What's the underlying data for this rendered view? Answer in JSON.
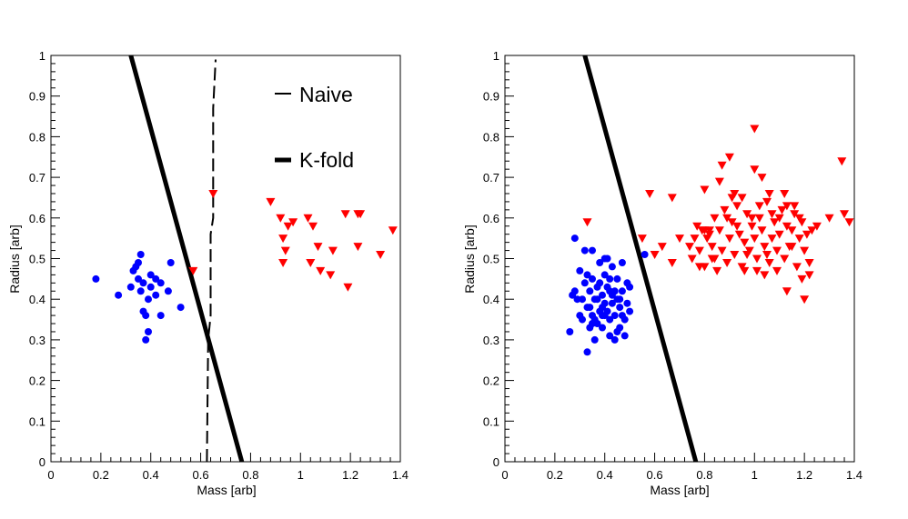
{
  "colors": {
    "class_a_marker": "#0000ff",
    "class_b_marker": "#ff0000",
    "boundary": "#000000",
    "frame": "#000000",
    "background": "#ffffff"
  },
  "chart_data": [
    {
      "type": "scatter",
      "title": "",
      "xlabel": "Mass [arb]",
      "ylabel": "Radius [arb]",
      "xlim": [
        0,
        1.4
      ],
      "ylim": [
        0,
        1
      ],
      "xticks": [
        "0",
        "0.2",
        "0.4",
        "0.6",
        "0.8",
        "1",
        "1.2",
        "1.4"
      ],
      "yticks": [
        "0",
        "0.1",
        "0.2",
        "0.3",
        "0.4",
        "0.5",
        "0.6",
        "0.7",
        "0.8",
        "0.9",
        "1"
      ],
      "grid": false,
      "legend": {
        "placement": "top-right",
        "entries": [
          {
            "label": "Naive",
            "line": "thin"
          },
          {
            "label": "K-fold",
            "line": "thick"
          }
        ]
      },
      "series": [
        {
          "marker": "circle",
          "color": "#0000ff",
          "points": [
            [
              0.18,
              0.45
            ],
            [
              0.27,
              0.41
            ],
            [
              0.32,
              0.43
            ],
            [
              0.33,
              0.47
            ],
            [
              0.34,
              0.48
            ],
            [
              0.35,
              0.49
            ],
            [
              0.36,
              0.51
            ],
            [
              0.35,
              0.45
            ],
            [
              0.37,
              0.44
            ],
            [
              0.36,
              0.42
            ],
            [
              0.37,
              0.37
            ],
            [
              0.38,
              0.36
            ],
            [
              0.39,
              0.4
            ],
            [
              0.38,
              0.3
            ],
            [
              0.39,
              0.32
            ],
            [
              0.4,
              0.46
            ],
            [
              0.4,
              0.43
            ],
            [
              0.42,
              0.41
            ],
            [
              0.42,
              0.45
            ],
            [
              0.44,
              0.44
            ],
            [
              0.44,
              0.36
            ],
            [
              0.47,
              0.42
            ],
            [
              0.48,
              0.49
            ],
            [
              0.52,
              0.38
            ]
          ]
        },
        {
          "marker": "triangle-down",
          "color": "#ff0000",
          "points": [
            [
              0.57,
              0.47
            ],
            [
              0.65,
              0.66
            ],
            [
              0.88,
              0.64
            ],
            [
              0.92,
              0.6
            ],
            [
              0.93,
              0.55
            ],
            [
              0.95,
              0.58
            ],
            [
              0.97,
              0.59
            ],
            [
              0.94,
              0.52
            ],
            [
              0.93,
              0.49
            ],
            [
              1.03,
              0.6
            ],
            [
              1.05,
              0.58
            ],
            [
              1.07,
              0.53
            ],
            [
              1.04,
              0.49
            ],
            [
              1.08,
              0.47
            ],
            [
              1.13,
              0.52
            ],
            [
              1.12,
              0.46
            ],
            [
              1.18,
              0.61
            ],
            [
              1.19,
              0.43
            ],
            [
              1.23,
              0.61
            ],
            [
              1.24,
              0.61
            ],
            [
              1.23,
              0.53
            ],
            [
              1.32,
              0.51
            ],
            [
              1.37,
              0.57
            ]
          ]
        }
      ],
      "boundaries": [
        {
          "label": "Naive",
          "style": "dashed",
          "points": [
            [
              0.625,
              0
            ],
            [
              0.63,
              0.3
            ],
            [
              0.64,
              0.36
            ],
            [
              0.64,
              0.56
            ],
            [
              0.65,
              0.6
            ],
            [
              0.65,
              0.87
            ],
            [
              0.66,
              0.99
            ]
          ]
        },
        {
          "label": "K-fold",
          "style": "solid-thick",
          "points": [
            [
              0.765,
              0
            ],
            [
              0.32,
              1
            ]
          ]
        }
      ]
    },
    {
      "type": "scatter",
      "title": "",
      "xlabel": "Mass [arb]",
      "ylabel": "Radius [arb]",
      "xlim": [
        0,
        1.4
      ],
      "ylim": [
        0,
        1
      ],
      "xticks": [
        "0",
        "0.2",
        "0.4",
        "0.6",
        "0.8",
        "1",
        "1.2",
        "1.4"
      ],
      "yticks": [
        "0",
        "0.1",
        "0.2",
        "0.3",
        "0.4",
        "0.5",
        "0.6",
        "0.7",
        "0.8",
        "0.9",
        "1"
      ],
      "grid": false,
      "series": [
        {
          "marker": "circle",
          "color": "#0000ff",
          "points": [
            [
              0.26,
              0.32
            ],
            [
              0.28,
              0.55
            ],
            [
              0.27,
              0.41
            ],
            [
              0.28,
              0.42
            ],
            [
              0.29,
              0.4
            ],
            [
              0.3,
              0.36
            ],
            [
              0.3,
              0.47
            ],
            [
              0.31,
              0.35
            ],
            [
              0.32,
              0.52
            ],
            [
              0.33,
              0.27
            ],
            [
              0.33,
              0.38
            ],
            [
              0.33,
              0.46
            ],
            [
              0.34,
              0.42
            ],
            [
              0.34,
              0.33
            ],
            [
              0.35,
              0.36
            ],
            [
              0.35,
              0.52
            ],
            [
              0.35,
              0.45
            ],
            [
              0.36,
              0.4
            ],
            [
              0.36,
              0.3
            ],
            [
              0.37,
              0.34
            ],
            [
              0.37,
              0.43
            ],
            [
              0.38,
              0.37
            ],
            [
              0.38,
              0.49
            ],
            [
              0.39,
              0.41
            ],
            [
              0.39,
              0.33
            ],
            [
              0.4,
              0.46
            ],
            [
              0.4,
              0.36
            ],
            [
              0.4,
              0.39
            ],
            [
              0.41,
              0.43
            ],
            [
              0.41,
              0.5
            ],
            [
              0.42,
              0.35
            ],
            [
              0.42,
              0.31
            ],
            [
              0.43,
              0.48
            ],
            [
              0.43,
              0.41
            ],
            [
              0.44,
              0.36
            ],
            [
              0.44,
              0.3
            ],
            [
              0.45,
              0.45
            ],
            [
              0.45,
              0.4
            ],
            [
              0.46,
              0.33
            ],
            [
              0.46,
              0.38
            ],
            [
              0.47,
              0.42
            ],
            [
              0.47,
              0.49
            ],
            [
              0.48,
              0.31
            ],
            [
              0.48,
              0.35
            ],
            [
              0.49,
              0.39
            ],
            [
              0.49,
              0.44
            ],
            [
              0.5,
              0.37
            ],
            [
              0.5,
              0.43
            ],
            [
              0.37,
              0.4
            ],
            [
              0.39,
              0.38
            ],
            [
              0.41,
              0.37
            ],
            [
              0.43,
              0.39
            ],
            [
              0.36,
              0.35
            ],
            [
              0.38,
              0.44
            ],
            [
              0.42,
              0.45
            ],
            [
              0.44,
              0.42
            ],
            [
              0.46,
              0.4
            ],
            [
              0.34,
              0.38
            ],
            [
              0.35,
              0.34
            ],
            [
              0.39,
              0.36
            ],
            [
              0.4,
              0.5
            ],
            [
              0.42,
              0.42
            ],
            [
              0.45,
              0.32
            ],
            [
              0.47,
              0.36
            ],
            [
              0.31,
              0.4
            ],
            [
              0.32,
              0.44
            ],
            [
              0.56,
              0.51
            ]
          ]
        },
        {
          "marker": "triangle-down",
          "color": "#ff0000",
          "points": [
            [
              0.33,
              0.59
            ],
            [
              0.55,
              0.55
            ],
            [
              0.58,
              0.66
            ],
            [
              0.6,
              0.51
            ],
            [
              0.63,
              0.53
            ],
            [
              0.67,
              0.49
            ],
            [
              0.67,
              0.65
            ],
            [
              0.7,
              0.55
            ],
            [
              0.74,
              0.53
            ],
            [
              0.75,
              0.5
            ],
            [
              0.76,
              0.55
            ],
            [
              0.77,
              0.58
            ],
            [
              0.78,
              0.52
            ],
            [
              0.79,
              0.57
            ],
            [
              0.8,
              0.48
            ],
            [
              0.81,
              0.55
            ],
            [
              0.82,
              0.57
            ],
            [
              0.83,
              0.5
            ],
            [
              0.84,
              0.6
            ],
            [
              0.85,
              0.47
            ],
            [
              0.86,
              0.57
            ],
            [
              0.87,
              0.52
            ],
            [
              0.88,
              0.62
            ],
            [
              0.89,
              0.49
            ],
            [
              0.9,
              0.55
            ],
            [
              0.91,
              0.59
            ],
            [
              0.92,
              0.51
            ],
            [
              0.93,
              0.63
            ],
            [
              0.94,
              0.56
            ],
            [
              0.95,
              0.48
            ],
            [
              0.96,
              0.54
            ],
            [
              0.97,
              0.61
            ],
            [
              0.98,
              0.52
            ],
            [
              0.99,
              0.58
            ],
            [
              1.0,
              0.55
            ],
            [
              1.0,
              0.82
            ],
            [
              1.01,
              0.5
            ],
            [
              1.02,
              0.6
            ],
            [
              1.03,
              0.57
            ],
            [
              1.04,
              0.53
            ],
            [
              1.05,
              0.64
            ],
            [
              1.06,
              0.49
            ],
            [
              1.07,
              0.55
            ],
            [
              1.08,
              0.59
            ],
            [
              1.09,
              0.52
            ],
            [
              1.1,
              0.56
            ],
            [
              1.11,
              0.62
            ],
            [
              1.12,
              0.5
            ],
            [
              1.13,
              0.58
            ],
            [
              1.14,
              0.53
            ],
            [
              1.15,
              0.57
            ],
            [
              1.16,
              0.61
            ],
            [
              1.17,
              0.48
            ],
            [
              1.18,
              0.55
            ],
            [
              1.19,
              0.59
            ],
            [
              1.2,
              0.52
            ],
            [
              1.21,
              0.56
            ],
            [
              1.22,
              0.49
            ],
            [
              1.23,
              0.57
            ],
            [
              0.87,
              0.73
            ],
            [
              0.9,
              0.75
            ],
            [
              0.92,
              0.66
            ],
            [
              0.95,
              0.65
            ],
            [
              1.0,
              0.72
            ],
            [
              1.03,
              0.7
            ],
            [
              1.06,
              0.66
            ],
            [
              1.1,
              0.6
            ],
            [
              1.13,
              0.63
            ],
            [
              1.16,
              0.63
            ],
            [
              1.19,
              0.45
            ],
            [
              1.2,
              0.4
            ],
            [
              1.13,
              0.42
            ],
            [
              1.22,
              0.46
            ],
            [
              0.8,
              0.67
            ],
            [
              0.82,
              0.56
            ],
            [
              0.84,
              0.5
            ],
            [
              0.89,
              0.6
            ],
            [
              0.93,
              0.58
            ],
            [
              0.97,
              0.51
            ],
            [
              1.01,
              0.47
            ],
            [
              1.05,
              0.51
            ],
            [
              1.09,
              0.47
            ],
            [
              1.12,
              0.66
            ],
            [
              1.18,
              0.6
            ],
            [
              1.25,
              0.58
            ],
            [
              1.3,
              0.6
            ],
            [
              1.35,
              0.74
            ],
            [
              1.36,
              0.61
            ],
            [
              1.38,
              0.59
            ],
            [
              0.86,
              0.69
            ],
            [
              0.91,
              0.65
            ],
            [
              0.99,
              0.6
            ],
            [
              1.07,
              0.61
            ],
            [
              1.15,
              0.53
            ],
            [
              0.78,
              0.48
            ],
            [
              0.8,
              0.57
            ],
            [
              0.83,
              0.53
            ],
            [
              0.96,
              0.47
            ],
            [
              1.02,
              0.63
            ],
            [
              1.04,
              0.46
            ]
          ]
        }
      ],
      "boundaries": [
        {
          "label": "",
          "style": "solid-thick",
          "points": [
            [
              0.765,
              0
            ],
            [
              0.32,
              1
            ]
          ]
        }
      ]
    }
  ]
}
